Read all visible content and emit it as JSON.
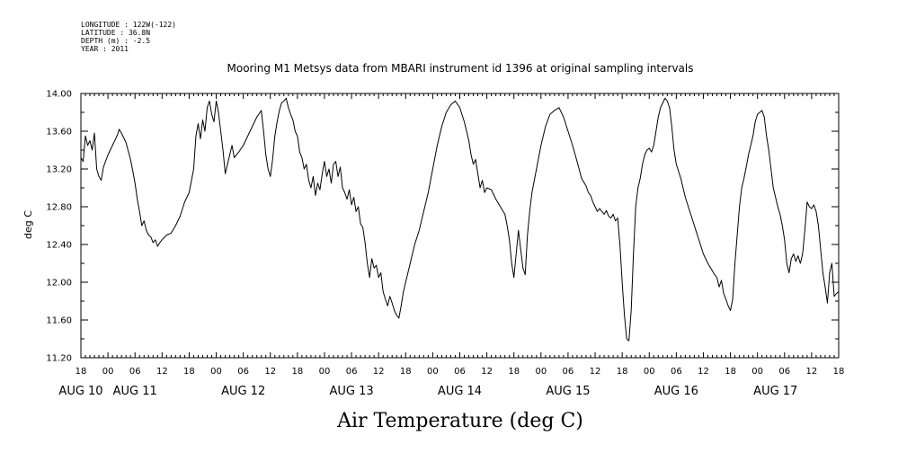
{
  "metadata": {
    "longitude": "LONGITUDE : 122W(-122)",
    "latitude": "LATITUDE : 36.8N",
    "depth": "DEPTH (m) : -2.5",
    "year": "YEAR : 2011"
  },
  "chart_data": {
    "type": "line",
    "title": "Mooring M1 Metsys data from MBARI instrument id 1396 at original sampling intervals",
    "xlabel": "Air Temperature (deg C)",
    "ylabel": "deg C",
    "xlim_hours": [
      0,
      168
    ],
    "ylim": [
      11.2,
      14.0
    ],
    "y_ticks": [
      "14.00",
      "13.60",
      "13.20",
      "12.80",
      "12.40",
      "12.00",
      "11.60",
      "11.20"
    ],
    "x_hour_ticks": [
      "18",
      "00",
      "06",
      "12",
      "18",
      "00",
      "06",
      "12",
      "18",
      "00",
      "06",
      "12",
      "18",
      "00",
      "06",
      "12",
      "18",
      "00",
      "06",
      "12",
      "18",
      "00",
      "06",
      "12",
      "18",
      "00",
      "06",
      "12",
      "18"
    ],
    "x_date_labels": [
      {
        "label": "AUG 10",
        "hour": 0
      },
      {
        "label": "AUG 11",
        "hour": 12
      },
      {
        "label": "AUG 12",
        "hour": 36
      },
      {
        "label": "AUG 13",
        "hour": 60
      },
      {
        "label": "AUG 14",
        "hour": 84
      },
      {
        "label": "AUG 15",
        "hour": 108
      },
      {
        "label": "AUG 16",
        "hour": 132
      },
      {
        "label": "AUG 17",
        "hour": 154
      }
    ],
    "series": [
      {
        "color": "#000000",
        "points": [
          [
            0,
            13.32
          ],
          [
            0.5,
            13.28
          ],
          [
            1,
            13.55
          ],
          [
            1.5,
            13.45
          ],
          [
            2,
            13.5
          ],
          [
            2.5,
            13.4
          ],
          [
            3,
            13.58
          ],
          [
            3.5,
            13.2
          ],
          [
            4,
            13.12
          ],
          [
            4.5,
            13.08
          ],
          [
            5,
            13.22
          ],
          [
            6,
            13.35
          ],
          [
            7,
            13.45
          ],
          [
            8,
            13.55
          ],
          [
            8.5,
            13.62
          ],
          [
            9,
            13.58
          ],
          [
            10,
            13.48
          ],
          [
            11,
            13.3
          ],
          [
            11.5,
            13.18
          ],
          [
            12,
            13.05
          ],
          [
            12.5,
            12.88
          ],
          [
            13,
            12.75
          ],
          [
            13.5,
            12.6
          ],
          [
            14,
            12.65
          ],
          [
            14.5,
            12.55
          ],
          [
            15,
            12.5
          ],
          [
            15.5,
            12.48
          ],
          [
            16,
            12.42
          ],
          [
            16.5,
            12.45
          ],
          [
            17,
            12.38
          ],
          [
            17.5,
            12.42
          ],
          [
            18,
            12.45
          ],
          [
            19,
            12.5
          ],
          [
            20,
            12.52
          ],
          [
            21,
            12.6
          ],
          [
            22,
            12.7
          ],
          [
            23,
            12.85
          ],
          [
            24,
            12.95
          ],
          [
            25,
            13.2
          ],
          [
            25.5,
            13.55
          ],
          [
            26,
            13.68
          ],
          [
            26.5,
            13.52
          ],
          [
            27,
            13.72
          ],
          [
            27.5,
            13.6
          ],
          [
            28,
            13.85
          ],
          [
            28.5,
            13.92
          ],
          [
            29,
            13.78
          ],
          [
            29.5,
            13.7
          ],
          [
            30,
            13.92
          ],
          [
            30.5,
            13.8
          ],
          [
            31,
            13.6
          ],
          [
            31.5,
            13.4
          ],
          [
            32,
            13.15
          ],
          [
            32.5,
            13.25
          ],
          [
            33,
            13.35
          ],
          [
            33.5,
            13.45
          ],
          [
            34,
            13.32
          ],
          [
            35,
            13.38
          ],
          [
            36,
            13.45
          ],
          [
            37,
            13.55
          ],
          [
            38,
            13.65
          ],
          [
            39,
            13.75
          ],
          [
            40,
            13.82
          ],
          [
            40.5,
            13.6
          ],
          [
            41,
            13.35
          ],
          [
            41.5,
            13.2
          ],
          [
            42,
            13.12
          ],
          [
            42.5,
            13.3
          ],
          [
            43,
            13.55
          ],
          [
            43.5,
            13.7
          ],
          [
            44,
            13.82
          ],
          [
            44.5,
            13.9
          ],
          [
            45,
            13.92
          ],
          [
            45.5,
            13.95
          ],
          [
            46,
            13.85
          ],
          [
            46.5,
            13.78
          ],
          [
            47,
            13.72
          ],
          [
            47.5,
            13.6
          ],
          [
            48,
            13.55
          ],
          [
            48.5,
            13.38
          ],
          [
            49,
            13.32
          ],
          [
            49.5,
            13.2
          ],
          [
            50,
            13.25
          ],
          [
            50.5,
            13.08
          ],
          [
            51,
            13.0
          ],
          [
            51.5,
            13.12
          ],
          [
            52,
            12.92
          ],
          [
            52.5,
            13.05
          ],
          [
            53,
            12.98
          ],
          [
            53.5,
            13.15
          ],
          [
            54,
            13.28
          ],
          [
            54.5,
            13.12
          ],
          [
            55,
            13.2
          ],
          [
            55.5,
            13.05
          ],
          [
            56,
            13.25
          ],
          [
            56.5,
            13.28
          ],
          [
            57,
            13.12
          ],
          [
            57.5,
            13.22
          ],
          [
            58,
            13.0
          ],
          [
            58.5,
            12.95
          ],
          [
            59,
            12.88
          ],
          [
            59.5,
            12.98
          ],
          [
            60,
            12.82
          ],
          [
            60.5,
            12.9
          ],
          [
            61,
            12.75
          ],
          [
            61.5,
            12.8
          ],
          [
            62,
            12.62
          ],
          [
            62.5,
            12.58
          ],
          [
            63,
            12.42
          ],
          [
            63.5,
            12.2
          ],
          [
            64,
            12.05
          ],
          [
            64.5,
            12.25
          ],
          [
            65,
            12.15
          ],
          [
            65.5,
            12.18
          ],
          [
            66,
            12.05
          ],
          [
            66.5,
            12.1
          ],
          [
            67,
            11.9
          ],
          [
            67.5,
            11.82
          ],
          [
            68,
            11.75
          ],
          [
            68.5,
            11.85
          ],
          [
            69,
            11.78
          ],
          [
            69.5,
            11.7
          ],
          [
            70,
            11.65
          ],
          [
            70.5,
            11.62
          ],
          [
            71,
            11.75
          ],
          [
            71.5,
            11.9
          ],
          [
            72,
            12.0
          ],
          [
            73,
            12.2
          ],
          [
            74,
            12.4
          ],
          [
            75,
            12.55
          ],
          [
            76,
            12.75
          ],
          [
            77,
            12.95
          ],
          [
            78,
            13.2
          ],
          [
            79,
            13.45
          ],
          [
            80,
            13.65
          ],
          [
            81,
            13.8
          ],
          [
            82,
            13.88
          ],
          [
            83,
            13.92
          ],
          [
            84,
            13.85
          ],
          [
            85,
            13.7
          ],
          [
            86,
            13.5
          ],
          [
            86.5,
            13.35
          ],
          [
            87,
            13.25
          ],
          [
            87.5,
            13.3
          ],
          [
            88,
            13.15
          ],
          [
            88.5,
            13.0
          ],
          [
            89,
            13.08
          ],
          [
            89.5,
            12.95
          ],
          [
            90,
            13.0
          ],
          [
            91,
            12.98
          ],
          [
            92,
            12.88
          ],
          [
            93,
            12.8
          ],
          [
            94,
            12.72
          ],
          [
            94.5,
            12.6
          ],
          [
            95,
            12.45
          ],
          [
            95.5,
            12.2
          ],
          [
            96,
            12.05
          ],
          [
            96.5,
            12.3
          ],
          [
            97,
            12.55
          ],
          [
            97.5,
            12.35
          ],
          [
            98,
            12.15
          ],
          [
            98.5,
            12.08
          ],
          [
            99,
            12.5
          ],
          [
            99.5,
            12.75
          ],
          [
            100,
            12.95
          ],
          [
            101,
            13.2
          ],
          [
            102,
            13.45
          ],
          [
            103,
            13.65
          ],
          [
            104,
            13.78
          ],
          [
            105,
            13.82
          ],
          [
            106,
            13.85
          ],
          [
            107,
            13.75
          ],
          [
            108,
            13.6
          ],
          [
            109,
            13.45
          ],
          [
            110,
            13.28
          ],
          [
            111,
            13.1
          ],
          [
            112,
            13.02
          ],
          [
            112.5,
            12.95
          ],
          [
            113,
            12.92
          ],
          [
            113.5,
            12.85
          ],
          [
            114,
            12.8
          ],
          [
            114.5,
            12.75
          ],
          [
            115,
            12.78
          ],
          [
            116,
            12.72
          ],
          [
            116.5,
            12.76
          ],
          [
            117,
            12.7
          ],
          [
            117.5,
            12.68
          ],
          [
            118,
            12.72
          ],
          [
            118.5,
            12.65
          ],
          [
            119,
            12.68
          ],
          [
            119.5,
            12.4
          ],
          [
            120,
            12.0
          ],
          [
            120.5,
            11.65
          ],
          [
            121,
            11.4
          ],
          [
            121.5,
            11.38
          ],
          [
            122,
            11.7
          ],
          [
            122.5,
            12.3
          ],
          [
            123,
            12.8
          ],
          [
            123.5,
            13.0
          ],
          [
            124,
            13.1
          ],
          [
            124.5,
            13.25
          ],
          [
            125,
            13.35
          ],
          [
            125.5,
            13.4
          ],
          [
            126,
            13.42
          ],
          [
            126.5,
            13.38
          ],
          [
            127,
            13.45
          ],
          [
            127.5,
            13.6
          ],
          [
            128,
            13.75
          ],
          [
            128.5,
            13.85
          ],
          [
            129,
            13.9
          ],
          [
            129.5,
            13.95
          ],
          [
            130,
            13.92
          ],
          [
            130.5,
            13.85
          ],
          [
            131,
            13.65
          ],
          [
            131.5,
            13.4
          ],
          [
            132,
            13.25
          ],
          [
            133,
            13.1
          ],
          [
            134,
            12.9
          ],
          [
            135,
            12.75
          ],
          [
            136,
            12.6
          ],
          [
            137,
            12.45
          ],
          [
            138,
            12.3
          ],
          [
            139,
            12.2
          ],
          [
            140,
            12.12
          ],
          [
            140.5,
            12.08
          ],
          [
            141,
            12.05
          ],
          [
            141.5,
            11.95
          ],
          [
            142,
            12.02
          ],
          [
            142.5,
            11.88
          ],
          [
            143,
            11.82
          ],
          [
            143.5,
            11.75
          ],
          [
            144,
            11.7
          ],
          [
            144.5,
            11.82
          ],
          [
            145,
            12.2
          ],
          [
            145.5,
            12.5
          ],
          [
            146,
            12.8
          ],
          [
            146.5,
            13.0
          ],
          [
            147,
            13.1
          ],
          [
            147.5,
            13.22
          ],
          [
            148,
            13.35
          ],
          [
            148.5,
            13.45
          ],
          [
            149,
            13.55
          ],
          [
            149.5,
            13.7
          ],
          [
            150,
            13.78
          ],
          [
            150.5,
            13.8
          ],
          [
            151,
            13.82
          ],
          [
            151.5,
            13.75
          ],
          [
            152,
            13.55
          ],
          [
            152.5,
            13.4
          ],
          [
            153,
            13.2
          ],
          [
            153.5,
            13.0
          ],
          [
            154,
            12.9
          ],
          [
            154.5,
            12.8
          ],
          [
            155,
            12.72
          ],
          [
            155.5,
            12.6
          ],
          [
            156,
            12.45
          ],
          [
            156.5,
            12.2
          ],
          [
            157,
            12.1
          ],
          [
            157.5,
            12.25
          ],
          [
            158,
            12.3
          ],
          [
            158.5,
            12.22
          ],
          [
            159,
            12.28
          ],
          [
            159.5,
            12.2
          ],
          [
            160,
            12.3
          ],
          [
            160.5,
            12.55
          ],
          [
            161,
            12.85
          ],
          [
            161.5,
            12.8
          ],
          [
            162,
            12.78
          ],
          [
            162.5,
            12.82
          ],
          [
            163,
            12.75
          ],
          [
            163.5,
            12.6
          ],
          [
            164,
            12.35
          ],
          [
            164.5,
            12.1
          ],
          [
            165,
            11.95
          ],
          [
            165.5,
            11.78
          ],
          [
            166,
            12.1
          ],
          [
            166.5,
            12.2
          ],
          [
            167,
            11.85
          ],
          [
            167.5,
            11.88
          ],
          [
            168,
            11.9
          ]
        ]
      }
    ]
  }
}
